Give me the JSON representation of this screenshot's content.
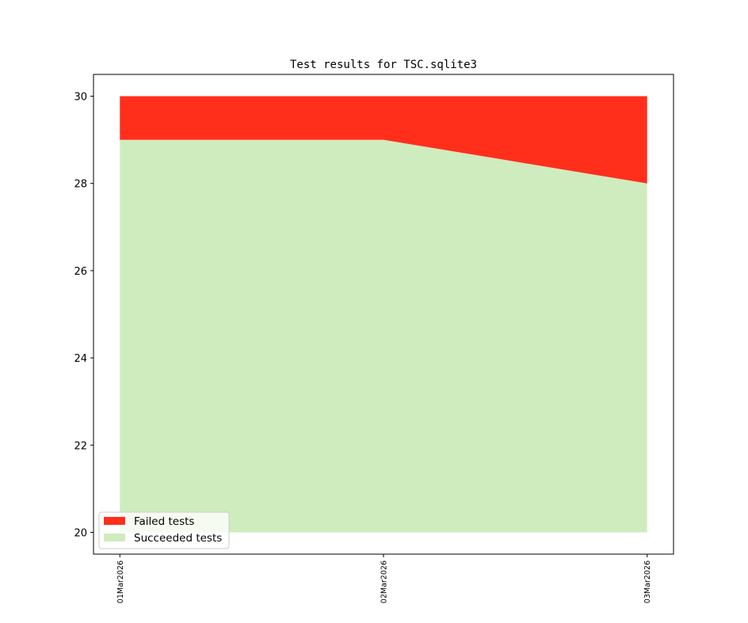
{
  "chart_data": {
    "type": "area",
    "title": "Test results for TSC.sqlite3",
    "xlabel": "",
    "ylabel": "",
    "categories": [
      "01Mar2026",
      "02Mar2026",
      "03Mar2026"
    ],
    "baseline": 20,
    "series": [
      {
        "name": "Succeeded tests",
        "values": [
          29,
          29,
          28
        ],
        "color": "#cfecbe"
      },
      {
        "name": "Failed tests",
        "values": [
          1,
          1,
          2
        ],
        "color": "#ff2f1c"
      }
    ],
    "ylim": [
      19.5,
      30.5
    ],
    "xlim": [
      -0.1,
      2.1
    ],
    "yticks": [
      20,
      22,
      24,
      26,
      28,
      30
    ],
    "grid": false,
    "legend": {
      "placement": "lower-left",
      "entries": [
        "Failed tests",
        "Succeeded tests"
      ]
    }
  }
}
